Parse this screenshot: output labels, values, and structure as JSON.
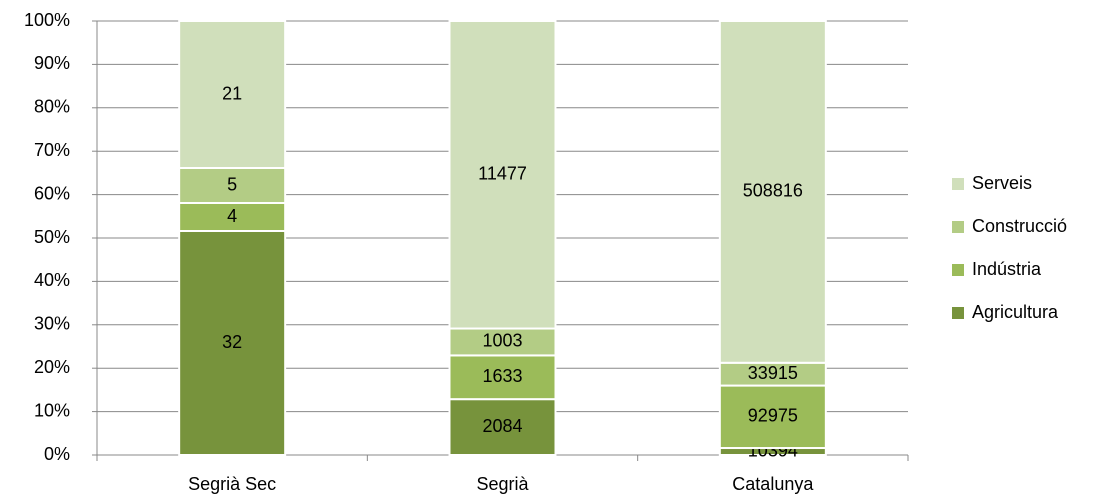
{
  "chart_data": {
    "type": "bar",
    "stacking": "percent",
    "categories": [
      "Segrià Sec",
      "Segrià",
      "Catalunya"
    ],
    "series": [
      {
        "name": "Agricultura",
        "color": "#77933c",
        "values": [
          32,
          2084,
          10394
        ]
      },
      {
        "name": "Indústria",
        "color": "#9bbb59",
        "values": [
          4,
          1633,
          92975
        ]
      },
      {
        "name": "Construcció",
        "color": "#b3cc85",
        "values": [
          5,
          1003,
          33915
        ]
      },
      {
        "name": "Serveis",
        "color": "#d0dfbb",
        "values": [
          21,
          11477,
          508816
        ]
      }
    ],
    "ylim": [
      0,
      100
    ],
    "yticks": [
      {
        "value": 0,
        "label": "0%"
      },
      {
        "value": 10,
        "label": "10%"
      },
      {
        "value": 20,
        "label": "20%"
      },
      {
        "value": 30,
        "label": "30%"
      },
      {
        "value": 40,
        "label": "40%"
      },
      {
        "value": 50,
        "label": "50%"
      },
      {
        "value": 60,
        "label": "60%"
      },
      {
        "value": 70,
        "label": "70%"
      },
      {
        "value": 80,
        "label": "80%"
      },
      {
        "value": 90,
        "label": "90%"
      },
      {
        "value": 100,
        "label": "100%"
      }
    ],
    "grid": true,
    "legend": "right"
  }
}
